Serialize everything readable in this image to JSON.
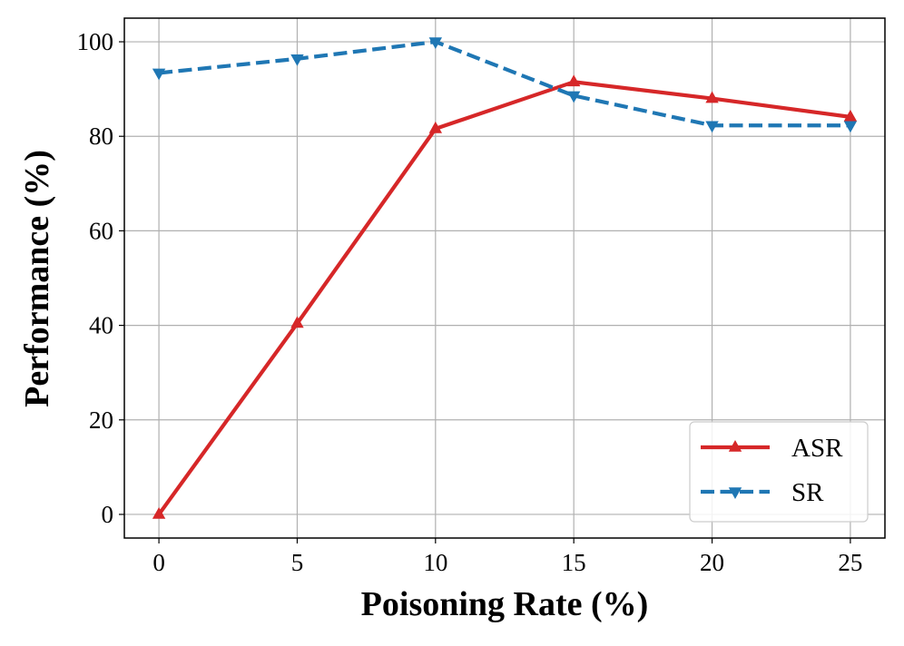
{
  "chart_data": {
    "type": "line",
    "title": "",
    "xlabel": "Poisoning Rate (%)",
    "ylabel": "Performance (%)",
    "x": [
      0,
      5,
      10,
      15,
      20,
      25
    ],
    "xticks": [
      "0",
      "5",
      "10",
      "15",
      "20",
      "25"
    ],
    "yticks": [
      "0",
      "20",
      "40",
      "60",
      "80",
      "100"
    ],
    "xlim": [
      -1.25,
      26.25
    ],
    "ylim": [
      -5,
      105
    ],
    "grid": true,
    "legend_position": "lower-right",
    "series": [
      {
        "name": "ASR",
        "values": [
          0,
          40.4,
          81.6,
          91.5,
          88.0,
          84.1
        ],
        "color": "#d62728",
        "linestyle": "solid",
        "marker": "triangle-up"
      },
      {
        "name": "SR",
        "values": [
          93.4,
          96.4,
          100.0,
          88.6,
          82.3,
          82.3
        ],
        "color": "#1f77b4",
        "linestyle": "dashed",
        "marker": "triangle-down"
      }
    ]
  }
}
